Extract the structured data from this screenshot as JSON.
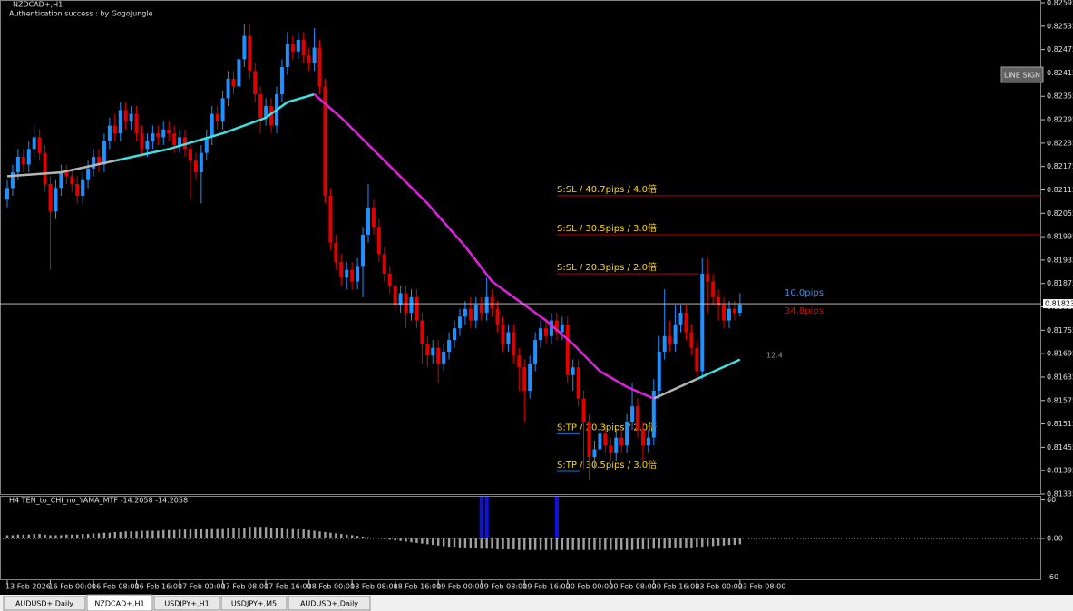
{
  "window": {
    "title": "NZDCAD+,H1",
    "status": "Authentication success : by GogoJungle",
    "button": "LINE SIGN"
  },
  "chart_data": [
    {
      "type": "candlestick",
      "up_color": "#1e90ff",
      "down_color": "#e00000",
      "ylim": [
        0.81335,
        0.82602
      ],
      "yticks": [
        0.82595,
        0.82535,
        0.82475,
        0.82415,
        0.82355,
        0.82295,
        0.82235,
        0.82175,
        0.82115,
        0.82055,
        0.81995,
        0.81935,
        0.81875,
        0.81815,
        0.81755,
        0.81695,
        0.81635,
        0.81575,
        0.81515,
        0.81455,
        0.81395,
        0.81335
      ],
      "current_price": 0.81823,
      "categories": [
        "13 Feb 2026",
        null,
        null,
        null,
        null,
        null,
        null,
        null,
        "16 Feb 00:00",
        null,
        null,
        null,
        null,
        null,
        null,
        null,
        "16 Feb 08:00",
        null,
        null,
        null,
        null,
        null,
        null,
        null,
        "16 Feb 16:00",
        null,
        null,
        null,
        null,
        null,
        null,
        null,
        "17 Feb 00:00",
        null,
        null,
        null,
        null,
        null,
        null,
        null,
        "17 Feb 08:00",
        null,
        null,
        null,
        null,
        null,
        null,
        null,
        "17 Feb 16:00",
        null,
        null,
        null,
        null,
        null,
        null,
        null,
        "18 Feb 00:00",
        null,
        null,
        null,
        null,
        null,
        null,
        null,
        "18 Feb 08:00",
        null,
        null,
        null,
        null,
        null,
        null,
        null,
        "18 Feb 16:00",
        null,
        null,
        null,
        null,
        null,
        null,
        null,
        "19 Feb 00:00",
        null,
        null,
        null,
        null,
        null,
        null,
        null,
        "19 Feb 08:00",
        null,
        null,
        null,
        null,
        null,
        null,
        null,
        "19 Feb 16:00",
        null,
        null,
        null,
        null,
        null,
        null,
        null,
        "20 Feb 00:00",
        null,
        null,
        null,
        null,
        null,
        null,
        null,
        "20 Feb 08:00",
        null,
        null,
        null,
        null,
        null,
        null,
        null,
        "20 Feb 16:00",
        null,
        null,
        null,
        null,
        null,
        null,
        null,
        "23 Feb 00:00",
        null,
        null,
        null,
        null,
        null,
        null,
        null,
        "23 Feb 08:00"
      ],
      "open": 0.8209,
      "close": [
        0.8212,
        0.8216,
        0.822,
        0.8218,
        0.8222,
        0.8225,
        0.8221,
        0.8213,
        0.8206,
        0.8212,
        0.8216,
        0.8215,
        0.8213,
        0.821,
        0.8214,
        0.8217,
        0.822,
        0.8218,
        0.8224,
        0.8228,
        0.8226,
        0.8232,
        0.8229,
        0.8231,
        0.8226,
        0.8222,
        0.8224,
        0.8226,
        0.8225,
        0.8227,
        0.8226,
        0.8223,
        0.8225,
        0.8222,
        0.8219,
        0.8216,
        0.8221,
        0.8225,
        0.8231,
        0.8229,
        0.8235,
        0.824,
        0.8238,
        0.8245,
        0.8251,
        0.8242,
        0.8236,
        0.823,
        0.8233,
        0.8228,
        0.8236,
        0.8243,
        0.8249,
        0.8247,
        0.825,
        0.8246,
        0.8244,
        0.8248,
        0.8238,
        0.821,
        0.8198,
        0.8193,
        0.8189,
        0.8191,
        0.8188,
        0.8192,
        0.82,
        0.8207,
        0.8202,
        0.8195,
        0.819,
        0.8187,
        0.8182,
        0.8185,
        0.818,
        0.8184,
        0.8178,
        0.8172,
        0.8169,
        0.8171,
        0.8167,
        0.817,
        0.8173,
        0.8176,
        0.8179,
        0.8181,
        0.8178,
        0.8182,
        0.818,
        0.8184,
        0.8181,
        0.8177,
        0.8172,
        0.8175,
        0.8169,
        0.8166,
        0.816,
        0.8167,
        0.8173,
        0.8176,
        0.8174,
        0.8178,
        0.8175,
        0.8177,
        0.8164,
        0.8166,
        0.8158,
        0.8152,
        0.8143,
        0.8145,
        0.8149,
        0.8146,
        0.8144,
        0.8148,
        0.8146,
        0.8152,
        0.8156,
        0.815,
        0.8146,
        0.8148,
        0.816,
        0.817,
        0.8174,
        0.8172,
        0.8177,
        0.818,
        0.8175,
        0.8171,
        0.8165,
        0.819,
        0.8188,
        0.8184,
        0.8182,
        0.8178,
        0.8181,
        0.818,
        0.8182
      ],
      "high": [
        0.8214,
        0.8218,
        0.8222,
        0.8222,
        0.8224,
        0.8228,
        0.8227,
        0.8223,
        0.8215,
        0.8214,
        0.8218,
        0.8218,
        0.8217,
        0.8215,
        0.8216,
        0.8219,
        0.8222,
        0.8222,
        0.8226,
        0.823,
        0.8231,
        0.8234,
        0.8234,
        0.8233,
        0.8233,
        0.8228,
        0.8226,
        0.8228,
        0.8228,
        0.8229,
        0.8229,
        0.8228,
        0.8227,
        0.8227,
        0.8224,
        0.8221,
        0.8223,
        0.8227,
        0.8233,
        0.8233,
        0.8237,
        0.8242,
        0.8242,
        0.8247,
        0.8254,
        0.8254,
        0.8244,
        0.8238,
        0.8235,
        0.8235,
        0.8238,
        0.8245,
        0.8252,
        0.8251,
        0.8252,
        0.8252,
        0.8248,
        0.8253,
        0.825,
        0.824,
        0.8212,
        0.82,
        0.8195,
        0.8193,
        0.8193,
        0.8194,
        0.8202,
        0.8213,
        0.8209,
        0.8204,
        0.8197,
        0.8192,
        0.8189,
        0.8187,
        0.8187,
        0.8186,
        0.8186,
        0.818,
        0.8174,
        0.8173,
        0.8173,
        0.8172,
        0.8175,
        0.8178,
        0.8181,
        0.8183,
        0.8184,
        0.8184,
        0.8184,
        0.8189,
        0.8186,
        0.8183,
        0.8179,
        0.8177,
        0.8177,
        0.8171,
        0.8168,
        0.8169,
        0.8175,
        0.8178,
        0.8178,
        0.818,
        0.818,
        0.8179,
        0.8179,
        0.8168,
        0.8168,
        0.816,
        0.8154,
        0.8147,
        0.8151,
        0.8151,
        0.8148,
        0.815,
        0.815,
        0.8154,
        0.8162,
        0.8158,
        0.8152,
        0.815,
        0.8163,
        0.8174,
        0.8186,
        0.8178,
        0.8182,
        0.8182,
        0.8182,
        0.8177,
        0.8173,
        0.8194,
        0.8194,
        0.819,
        0.8186,
        0.8184,
        0.8183,
        0.8183,
        0.8185
      ],
      "low": [
        0.8207,
        0.821,
        0.8214,
        0.8216,
        0.8216,
        0.822,
        0.8219,
        0.8211,
        0.8191,
        0.8204,
        0.821,
        0.8213,
        0.8211,
        0.8208,
        0.8208,
        0.8212,
        0.8215,
        0.8216,
        0.8216,
        0.8222,
        0.8224,
        0.8224,
        0.8227,
        0.8227,
        0.8224,
        0.822,
        0.822,
        0.8222,
        0.8223,
        0.8223,
        0.8224,
        0.8221,
        0.8221,
        0.822,
        0.8209,
        0.8214,
        0.8208,
        0.8219,
        0.8223,
        0.8227,
        0.8227,
        0.8233,
        0.8236,
        0.8236,
        0.8243,
        0.824,
        0.8234,
        0.8226,
        0.8228,
        0.8226,
        0.8226,
        0.8234,
        0.8241,
        0.8245,
        0.8245,
        0.8244,
        0.8242,
        0.8242,
        0.8236,
        0.8208,
        0.8196,
        0.8191,
        0.8187,
        0.8186,
        0.8186,
        0.8186,
        0.8184,
        0.8198,
        0.82,
        0.8193,
        0.8188,
        0.8185,
        0.818,
        0.818,
        0.8176,
        0.8178,
        0.8176,
        0.8167,
        0.8166,
        0.8167,
        0.8162,
        0.8165,
        0.8168,
        0.8171,
        0.8174,
        0.8177,
        0.8176,
        0.8176,
        0.8178,
        0.8178,
        0.8179,
        0.8175,
        0.817,
        0.817,
        0.8167,
        0.816,
        0.8152,
        0.8158,
        0.8165,
        0.8171,
        0.8172,
        0.8172,
        0.8173,
        0.8173,
        0.8162,
        0.816,
        0.8156,
        0.814,
        0.8137,
        0.814,
        0.8143,
        0.8144,
        0.8142,
        0.8142,
        0.8144,
        0.8144,
        0.815,
        0.8148,
        0.8142,
        0.8144,
        0.8146,
        0.8158,
        0.8168,
        0.817,
        0.817,
        0.8175,
        0.8173,
        0.8169,
        0.8163,
        0.8163,
        0.818,
        0.8182,
        0.8178,
        0.8176,
        0.8176,
        0.8178,
        0.8179
      ],
      "ma": [
        {
          "color": "#b4b4b4",
          "x": [
            0,
            10,
            20
          ],
          "values": [
            0.8215,
            0.8216,
            0.8219
          ]
        },
        {
          "color": "#40e0e0",
          "x": [
            20,
            30,
            40,
            48,
            52,
            57
          ],
          "values": [
            0.8219,
            0.8222,
            0.8226,
            0.823,
            0.8234,
            0.8236
          ]
        },
        {
          "color": "#e020e0",
          "x": [
            57,
            62,
            70,
            78,
            85,
            90,
            95,
            100,
            105,
            110,
            115,
            120
          ],
          "values": [
            0.8236,
            0.823,
            0.8219,
            0.8208,
            0.8197,
            0.8188,
            0.8183,
            0.8178,
            0.8172,
            0.8165,
            0.8161,
            0.8158
          ]
        },
        {
          "color": "#b4b4b4",
          "x": [
            120,
            128
          ],
          "values": [
            0.8158,
            0.8163
          ]
        },
        {
          "color": "#40e0e0",
          "x": [
            128,
            136
          ],
          "values": [
            0.8163,
            0.8168
          ]
        }
      ],
      "levels": [
        {
          "label": "S:SL / 40.7pips / 4.0倍",
          "value": 0.821,
          "color": "#c00000"
        },
        {
          "label": "S:SL / 30.5pips / 3.0倍",
          "value": 0.82,
          "color": "#c00000"
        },
        {
          "label": "S:SL / 20.3pips / 2.0倍",
          "value": 0.819,
          "color": "#c00000"
        },
        {
          "label": "S:TP / 20.3pips / 2.0倍",
          "value": 0.8149,
          "color": "#1e70d0"
        },
        {
          "label": "S:TP / 30.5pips / 3.0倍",
          "value": 0.81393,
          "color": "#1e70d0"
        }
      ],
      "annotations": {
        "tp_pips": "10.0pips",
        "sl_pips": "34.8pips",
        "spread": "12.4"
      }
    },
    {
      "type": "histogram",
      "title": "H4  TEN_to_CHI_no_YAMA_MTF -14.2058 -14.2058",
      "color": "#a0a0a0",
      "signal_color": "#1010e0",
      "ylim": [
        -65,
        65
      ],
      "yticks": [
        60,
        {
          "value": 0,
          "label": "0.00"
        },
        -60
      ],
      "values": [
        5,
        5,
        6,
        6,
        6,
        7,
        7,
        6,
        5,
        5,
        5,
        6,
        6,
        6,
        7,
        7,
        8,
        8,
        9,
        9,
        10,
        10,
        11,
        11,
        11,
        12,
        12,
        12,
        12,
        13,
        13,
        13,
        14,
        14,
        14,
        15,
        15,
        15,
        16,
        16,
        16,
        17,
        17,
        17,
        17,
        18,
        18,
        18,
        18,
        17,
        17,
        17,
        16,
        16,
        15,
        14,
        13,
        12,
        11,
        10,
        9,
        8,
        7,
        6,
        5,
        4,
        3,
        2,
        1,
        0,
        -1,
        -2,
        -3,
        -4,
        -5,
        -6,
        -7,
        -8,
        -9,
        -10,
        -11,
        -12,
        -13,
        -13,
        -14,
        -14,
        -15,
        -15,
        -16,
        -16,
        -16,
        -17,
        -17,
        -17,
        -17,
        -18,
        -18,
        -18,
        -18,
        -18,
        -18,
        -18,
        -18,
        -18,
        -18,
        -18,
        -18,
        -18,
        -18,
        -18,
        -18,
        -18,
        -18,
        -18,
        -18,
        -18,
        -18,
        -17,
        -17,
        -17,
        -16,
        -16,
        -16,
        -15,
        -15,
        -15,
        -14,
        -14,
        -13,
        -13,
        -12,
        -12,
        -11,
        -11,
        -10,
        -10,
        -9
      ],
      "signal_x": [
        88,
        89,
        102
      ],
      "signal_values": [
        65,
        65,
        65
      ]
    }
  ],
  "tabs": [
    "AUDUSD+,Daily",
    "NZDCAD+,H1",
    "USDJPY+,H1",
    "USDJPY+,M5",
    "AUDUSD+,Daily"
  ]
}
